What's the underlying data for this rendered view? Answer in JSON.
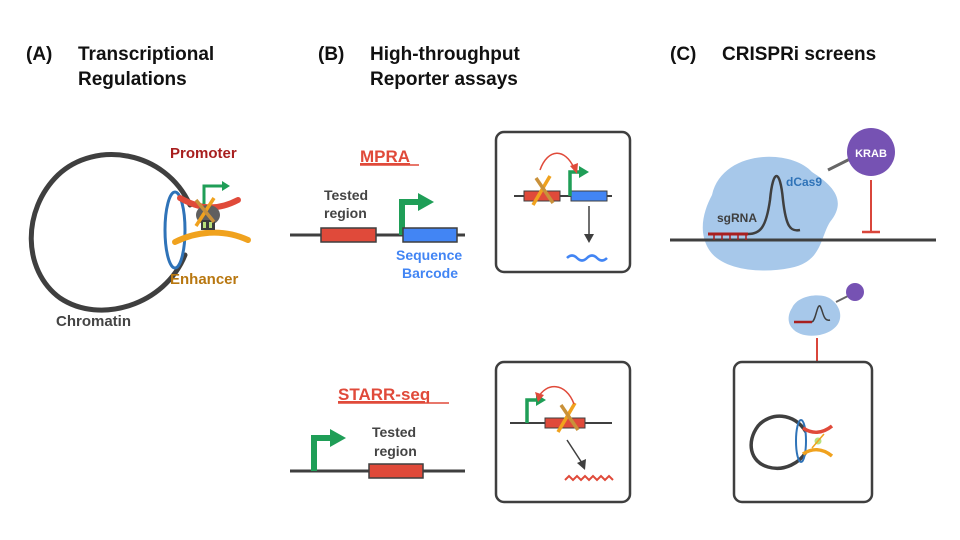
{
  "panels": {
    "a": {
      "letter": "(A)",
      "title_line1": "Transcriptional",
      "title_line2": "Regulations",
      "labels": {
        "promoter": "Promoter",
        "enhancer": "Enhancer",
        "chromatin": "Chromatin"
      }
    },
    "b": {
      "letter": "(B)",
      "title_line1": "High-throughput",
      "title_line2": "Reporter assays",
      "mpra": {
        "name": "MPRA",
        "tested_line1": "Tested",
        "tested_line2": "region",
        "barcode_line1": "Sequence",
        "barcode_line2": "Barcode"
      },
      "starr": {
        "name": "STARR-seq",
        "tested_line1": "Tested",
        "tested_line2": "region"
      }
    },
    "c": {
      "letter": "(C)",
      "title": "CRISPRi screens",
      "labels": {
        "krab": "KRAB",
        "dcas9": "dCas9",
        "sgrna": "sgRNA"
      }
    }
  },
  "colors": {
    "dna": "#3f3f3f",
    "promoter": "#e04a3a",
    "enhancer": "#f0a21e",
    "arrow": "#1f9e57",
    "barcode": "#4285f4",
    "loop_ring": "#2f73b8",
    "dcas9": "#a7c8ea",
    "krab": "#7652b3",
    "repress": "#d9463b"
  }
}
